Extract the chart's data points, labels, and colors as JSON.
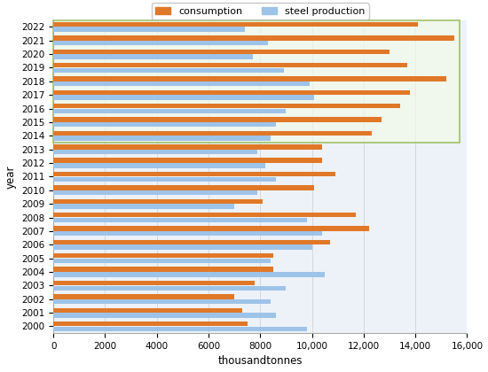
{
  "year_labels": [
    "2022",
    "2021",
    "2020",
    "2019",
    "2018",
    "2017",
    "2016",
    "2015",
    "2014",
    "2013",
    "2012",
    "2011",
    "2010",
    "2009",
    "2008",
    "2007",
    "2006",
    "2005",
    "2004",
    "2003",
    "2002",
    "2001",
    "2000"
  ],
  "consumption": [
    14100,
    15500,
    13000,
    13700,
    15200,
    13800,
    13400,
    12700,
    12300,
    10400,
    10400,
    10900,
    10100,
    8100,
    11700,
    12200,
    10700,
    8500,
    8500,
    7800,
    7000,
    7300,
    7500
  ],
  "steel_production": [
    7400,
    8300,
    7700,
    8900,
    9900,
    10100,
    9000,
    8600,
    8400,
    7900,
    8200,
    8600,
    7900,
    7000,
    9800,
    10400,
    10000,
    8400,
    10500,
    9000,
    8400,
    8600,
    9800
  ],
  "consumption_color": "#E07828",
  "steel_production_color": "#9EC3E8",
  "xlim": [
    0,
    16000
  ],
  "xticks": [
    0,
    2000,
    4000,
    6000,
    8000,
    10000,
    12000,
    14000,
    16000
  ],
  "xtick_labels": [
    "0",
    "2000",
    "4000",
    "6000",
    "8000",
    "10,000",
    "12,000",
    "14,000",
    "16,000"
  ],
  "xlabel": "thousandtonnes",
  "ylabel": "year",
  "legend_consumption": "consumption",
  "legend_steel": "steel production",
  "highlight_n_rows": 9,
  "highlight_edge_color": "#88B040",
  "highlight_fill_color": "#F2FAE8",
  "plot_bg_color": "#EDF2F8",
  "bar_height": 0.35,
  "bar_gap": 0.02
}
